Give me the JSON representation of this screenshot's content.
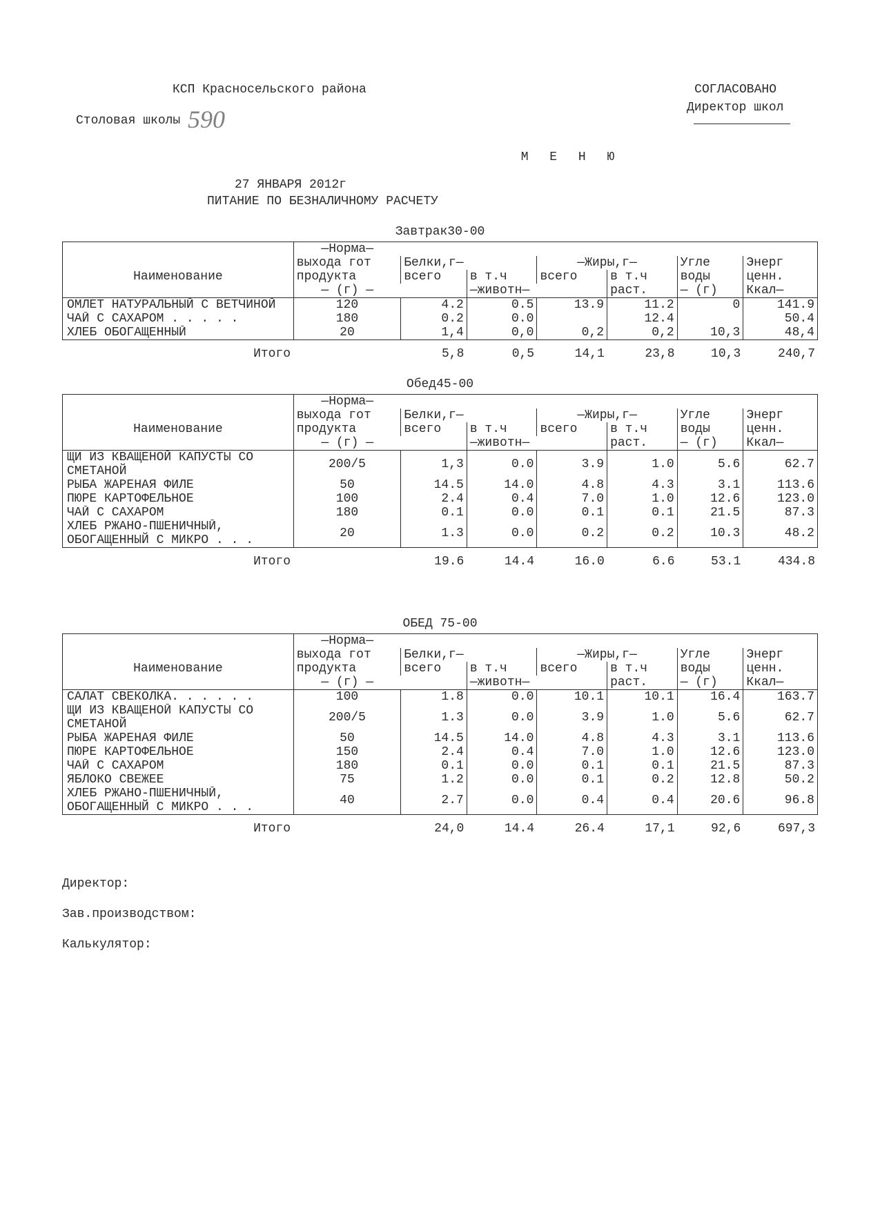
{
  "header": {
    "org": "КСП Красносельского района",
    "approved": "СОГЛАСОВАНО",
    "school_label": "Столовая школы",
    "school_number_hand": "590",
    "director_label": "Директор школ",
    "title": "М Е Н Ю",
    "date": "27   ЯНВАРЯ        2012г",
    "subtitle": "ПИТАНИЕ  ПО БЕЗНАЛИЧНОМУ РАСЧЕТУ"
  },
  "columns": {
    "name": "Наименование",
    "norma": "—Норма—",
    "norma2": "выхода гот",
    "norma3": "продукта",
    "norma4": "— (г) —",
    "belki": "Белки,г—",
    "jiry": "—Жиры,г—",
    "vsego": "всего",
    "vtch": "в т.ч",
    "jivotn": "—животн—",
    "rast": "раст.",
    "ugle": "Угле",
    "ugle2": "воды",
    "ugle3": "— (г)",
    "energ": "Энерг",
    "energ2": "ценн.",
    "energ3": "Ккал—"
  },
  "meals": [
    {
      "title": "Завтрак30-00",
      "rows": [
        {
          "name": "ОМЛЕТ НАТУРАЛЬНЫЙ С ВЕТЧИНОЙ",
          "g": "120",
          "b": "4.2",
          "bj": "0.5",
          "j": "13.9",
          "jr": "11.2",
          "u": "0",
          "e": "141.9"
        },
        {
          "name": "ЧАЙ   С   САХАРОМ . . . . .",
          "g": "180",
          "b": "0.2",
          "bj": "0.0",
          "j": "",
          "jr": "12.4",
          "u": "",
          "e": "50.4"
        },
        {
          "name": "ХЛЕБ  ОБОГАЩЕННЫЙ",
          "g": "20",
          "b": "1,4",
          "bj": "0,0",
          "j": "0,2",
          "jr": "0,2",
          "u": "10,3",
          "e": "48,4"
        }
      ],
      "total_label": "Итого",
      "total": {
        "b": "5,8",
        "bj": "0,5",
        "j": "14,1",
        "jr": "23,8",
        "u": "10,3",
        "e": "240,7"
      }
    },
    {
      "title": "Обед45-00",
      "rows": [
        {
          "name": "ЩИ ИЗ КВАЩЕНОЙ КАПУСТЫ СО СМЕТАНОЙ",
          "g": "200/5",
          "b": "1,3",
          "bj": "0.0",
          "j": "3.9",
          "jr": "1.0",
          "u": "5.6",
          "e": "62.7"
        },
        {
          "name": "РЫБА ЖАРЕНАЯ ФИЛЕ",
          "g": "50",
          "b": "14.5",
          "bj": "14.0",
          "j": "4.8",
          "jr": "4.3",
          "u": "3.1",
          "e": "113.6"
        },
        {
          "name": "ПЮРЕ КАРТОФЕЛЬНОЕ",
          "g": "100",
          "b": "2.4",
          "bj": "0.4",
          "j": "7.0",
          "jr": "1.0",
          "u": "12.6",
          "e": "123.0"
        },
        {
          "name": "ЧАЙ С САХАРОМ",
          "g": "180",
          "b": "0.1",
          "bj": "0.0",
          "j": "0.1",
          "jr": "0.1",
          "u": "21.5",
          "e": "87.3"
        },
        {
          "name": "ХЛЕБ РЖАНО-ПШЕНИЧНЫЙ, ОБОГАЩЕННЫЙ С МИКРО . . .",
          "g": "20",
          "b": "1.3",
          "bj": "0.0",
          "j": "0.2",
          "jr": "0.2",
          "u": "10.3",
          "e": "48.2"
        }
      ],
      "total_label": "Итого",
      "total": {
        "b": "19.6",
        "bj": "14.4",
        "j": "16.0",
        "jr": "6.6",
        "u": "53.1",
        "e": "434.8"
      }
    },
    {
      "title": "ОБЕД 75-00",
      "rows": [
        {
          "name": "САЛАТ СВЕКОЛКА. . . . . .",
          "g": "100",
          "b": "1.8",
          "bj": "0.0",
          "j": "10.1",
          "jr": "10.1",
          "u": "16.4",
          "e": "163.7"
        },
        {
          "name": "ЩИ ИЗ КВАЩЕНОЙ КАПУСТЫ СО СМЕТАНОЙ",
          "g": "200/5",
          "b": "1.3",
          "bj": "0.0",
          "j": "3.9",
          "jr": "1.0",
          "u": "5.6",
          "e": "62.7"
        },
        {
          "name": "РЫБА ЖАРЕНАЯ ФИЛЕ",
          "g": "50",
          "b": "14.5",
          "bj": "14.0",
          "j": "4.8",
          "jr": "4.3",
          "u": "3.1",
          "e": "113.6"
        },
        {
          "name": "ПЮРЕ КАРТОФЕЛЬНОЕ",
          "g": "150",
          "b": "2.4",
          "bj": "0.4",
          "j": "7.0",
          "jr": "1.0",
          "u": "12.6",
          "e": "123.0"
        },
        {
          "name": "ЧАЙ С САХАРОМ",
          "g": "180",
          "b": "0.1",
          "bj": "0.0",
          "j": "0.1",
          "jr": "0.1",
          "u": "21.5",
          "e": "87.3"
        },
        {
          "name": "ЯБЛОКО СВЕЖЕЕ",
          "g": "75",
          "b": "1.2",
          "bj": "0.0",
          "j": "0.1",
          "jr": "0.2",
          "u": "12.8",
          "e": "50.2"
        },
        {
          "name": "ХЛЕБ РЖАНО-ПШЕНИЧНЫЙ, ОБОГАЩЕННЫЙ С МИКРО . . .",
          "g": "40",
          "b": "2.7",
          "bj": "0.0",
          "j": "0.4",
          "jr": "0.4",
          "u": "20.6",
          "e": "96.8"
        }
      ],
      "total_label": "Итого",
      "total": {
        "b": "24,0",
        "bj": "14.4",
        "j": "26.4",
        "jr": "17,1",
        "u": "92,6",
        "e": "697,3"
      }
    }
  ],
  "signatures": {
    "director": "Директор:",
    "zav": "Зав.производством:",
    "calc": "Калькулятор:"
  }
}
